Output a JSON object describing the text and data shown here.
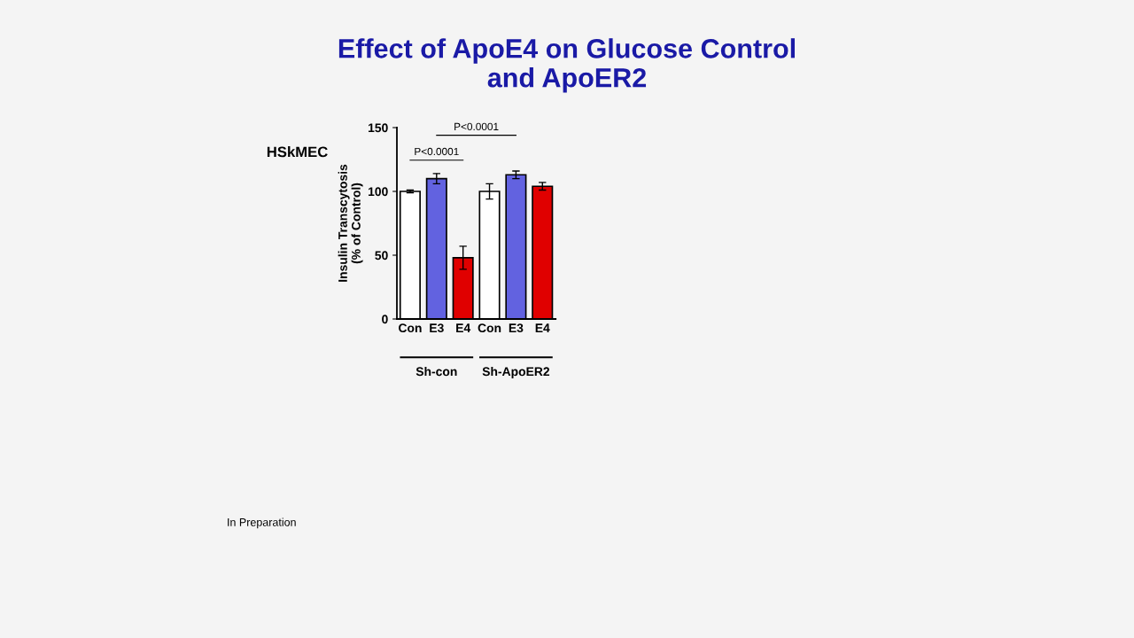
{
  "chart_data": {
    "type": "bar",
    "title": "Effect of ApoE4 on Glucose Control\nand ApoER2",
    "subtitle": "HSkMEC",
    "ylabel": "Insulin Transcytosis\n(% of Control)",
    "categories": [
      "Con",
      "E3",
      "E4",
      "Con",
      "E3",
      "E4"
    ],
    "values": [
      100,
      110,
      48,
      100,
      113,
      104
    ],
    "errors": [
      1,
      4,
      9,
      6,
      3,
      3
    ],
    "colors": [
      "#ffffff",
      "#6262e0",
      "#e00000",
      "#ffffff",
      "#6262e0",
      "#e00000"
    ],
    "ylim": [
      0,
      150
    ],
    "yticks": [
      0,
      50,
      100,
      150
    ],
    "grid": false,
    "legend": false,
    "annotations": [
      "P<0.0001",
      "P<0.0001",
      "Sh-con",
      "Sh-ApoER2",
      "In Preparation"
    ]
  }
}
